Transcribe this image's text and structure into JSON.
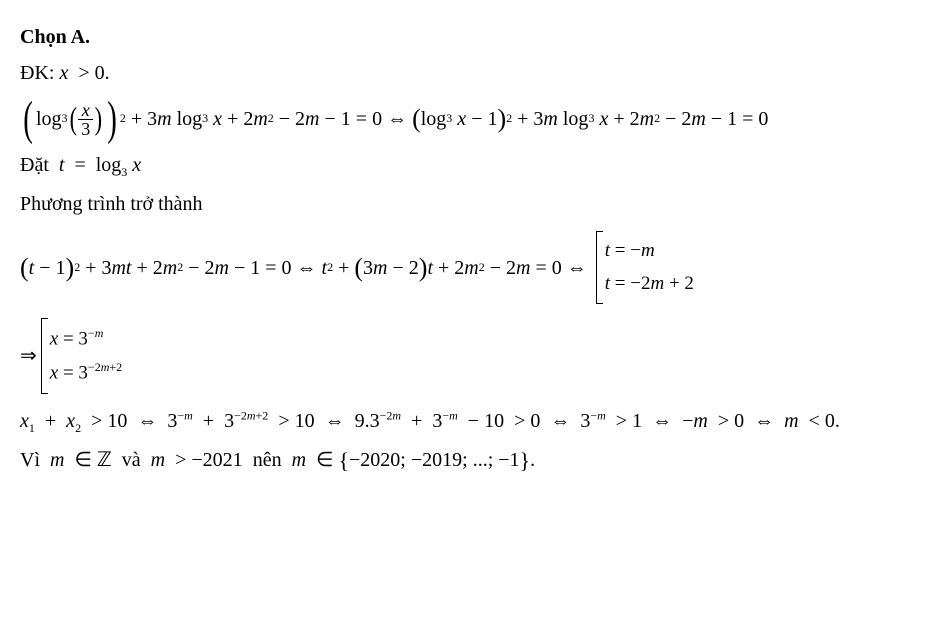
{
  "header": {
    "chon": "Chọn A."
  },
  "dk": {
    "label": "ĐK:",
    "expr_x": "x",
    "expr_gt": ">",
    "expr_zero": "0",
    "dot": "."
  },
  "eq1": {
    "log": "log",
    "base3": "3",
    "x": "x",
    "three": "3",
    "sq": "2",
    "plus": "+",
    "threem": "3",
    "m": "m",
    "two": "2",
    "minus": "−",
    "one": "1",
    "eq": "=",
    "zero": "0",
    "iff": "⇔"
  },
  "dat": {
    "label": "Đặt",
    "t": "t",
    "eq": "=",
    "log": "log",
    "base3": "3",
    "x": "x"
  },
  "phuong": {
    "text": "Phương trình trở thành"
  },
  "eq2": {
    "t": "t",
    "minus": "−",
    "one": "1",
    "sq": "2",
    "plus": "+",
    "three": "3",
    "m": "m",
    "two": "2",
    "eq": "=",
    "zero": "0",
    "iff": "⇔",
    "case1_lhs": "t",
    "case1_eq": "=",
    "case1_neg": "−",
    "case1_m": "m",
    "case2_lhs": "t",
    "case2_eq": "=",
    "case2_neg": "−",
    "case2_2m": "2",
    "case2_m": "m",
    "case2_plus": "+",
    "case2_two": "2"
  },
  "impl": {
    "arrow": "⇒",
    "c1_x": "x",
    "c1_eq": "=",
    "c1_base": "3",
    "c1_exp_neg": "−",
    "c1_exp_m": "m",
    "c2_x": "x",
    "c2_eq": "=",
    "c2_base": "3",
    "c2_exp_neg": "−",
    "c2_exp_2": "2",
    "c2_exp_m": "m",
    "c2_exp_plus": "+",
    "c2_exp_two": "2"
  },
  "eq3": {
    "x1": "x",
    "s1": "1",
    "plus": "+",
    "x2": "x",
    "s2": "2",
    "gt": ">",
    "ten": "10",
    "iff": "⇔",
    "three": "3",
    "negm": "−",
    "m": "m",
    "neg2mp2": "−2",
    "mp2": "m",
    "p2": "+2",
    "nine": "9",
    "dot": ".",
    "neg2m": "−2",
    "minus": "−",
    "zero": "0",
    "one": "1",
    "lt": "<",
    "period": "."
  },
  "vi": {
    "label": "Vì",
    "m": "m",
    "in": "∈",
    "Z": "ℤ",
    "va": "và",
    "gt": ">",
    "neg2021": "−2021",
    "nen": "nên",
    "set_open": "{",
    "set_items": "−2020; −2019; ...; −1",
    "set_close": "}",
    "dot": "."
  }
}
